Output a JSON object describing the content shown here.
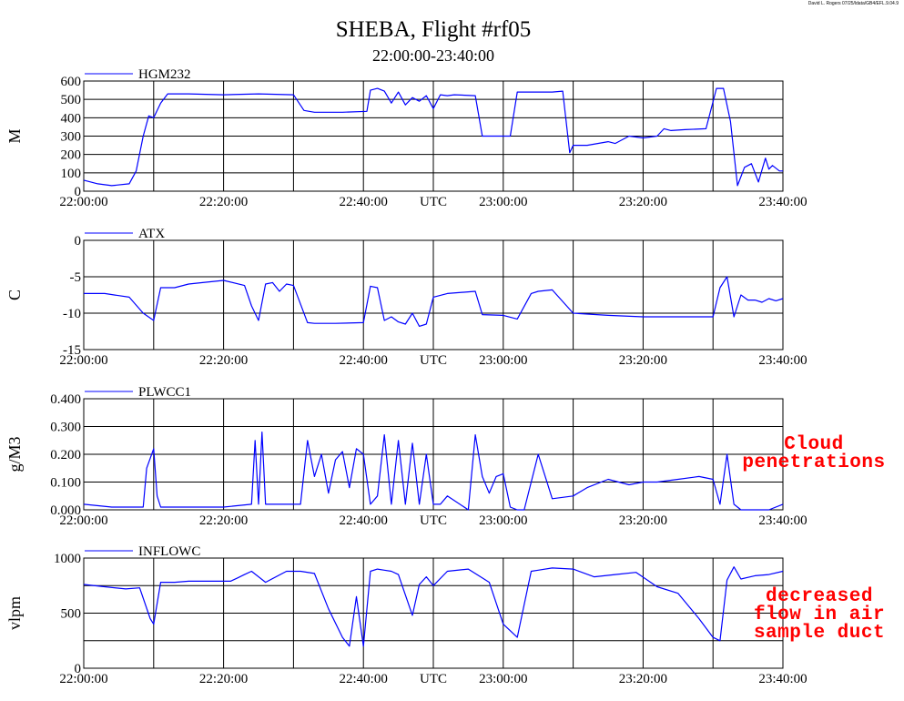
{
  "credit": "David L. Rogers 07/25/ldata/GB4/EFL.9.04.9",
  "chart_data": {
    "type": "line",
    "title": "SHEBA, Flight #rf05",
    "subtitle": "22:00:00-23:40:00",
    "xlabel": "UTC",
    "x_ticks": [
      "22:00:00",
      "22:20:00",
      "22:40:00",
      "23:00:00",
      "23:20:00",
      "23:40:00"
    ],
    "x_range_minutes": [
      0,
      100
    ],
    "line_color": "#0000ff",
    "grid": true,
    "panels": [
      {
        "name": "HGM232",
        "ylabel": "M",
        "ylim": [
          0,
          600
        ],
        "yticks": [
          0,
          100,
          200,
          300,
          400,
          500,
          600
        ],
        "ytick_labels": [
          "0",
          "100",
          "200",
          "300",
          "400",
          "500",
          "600"
        ],
        "x": [
          0,
          2,
          4,
          6.5,
          7.5,
          8.5,
          9.3,
          10,
          11,
          12,
          15,
          20,
          25,
          30,
          31.5,
          33,
          37,
          40.5,
          41,
          42,
          43,
          44,
          45,
          46,
          47,
          48,
          49,
          50,
          51,
          52,
          53,
          56,
          57,
          59,
          61,
          62,
          63,
          67,
          68.5,
          69.5,
          70,
          72,
          75,
          76,
          78,
          80,
          82,
          83,
          84,
          86,
          89,
          90.5,
          91.5,
          92.5,
          93.5,
          94.5,
          95.5,
          96.5,
          97.5,
          98,
          98.5,
          99.5,
          100
        ],
        "y": [
          60,
          40,
          30,
          40,
          110,
          300,
          410,
          400,
          480,
          530,
          530,
          525,
          530,
          525,
          440,
          430,
          430,
          435,
          550,
          560,
          545,
          480,
          540,
          470,
          510,
          490,
          520,
          450,
          525,
          520,
          525,
          520,
          300,
          300,
          300,
          540,
          540,
          540,
          545,
          210,
          250,
          250,
          270,
          260,
          300,
          290,
          300,
          340,
          330,
          335,
          340,
          560,
          560,
          380,
          30,
          130,
          150,
          50,
          180,
          120,
          140,
          110,
          110
        ]
      },
      {
        "name": "ATX",
        "ylabel": "C",
        "ylim": [
          -15,
          0
        ],
        "yticks": [
          -15,
          -10,
          -5,
          0
        ],
        "ytick_labels": [
          "-15",
          "-10",
          "-5",
          "0"
        ],
        "x": [
          0,
          3,
          6.5,
          8.5,
          10,
          11,
          13,
          15,
          17,
          20,
          23,
          24,
          25,
          26,
          27,
          28,
          29,
          30,
          32,
          33,
          36,
          40,
          41,
          42,
          43,
          44,
          45,
          46,
          47,
          48,
          49,
          50,
          52,
          56,
          57,
          60,
          62,
          64,
          65,
          67,
          70,
          75,
          80,
          85,
          90,
          91,
          92,
          93,
          94,
          95,
          96,
          97,
          98,
          99,
          100
        ],
        "y": [
          -7.3,
          -7.3,
          -7.8,
          -10,
          -11,
          -6.5,
          -6.5,
          -6,
          -5.8,
          -5.5,
          -6.2,
          -9,
          -11,
          -6,
          -5.8,
          -7,
          -6,
          -6.2,
          -11.3,
          -11.4,
          -11.4,
          -11.3,
          -6.3,
          -6.5,
          -11,
          -10.5,
          -11.2,
          -11.5,
          -10,
          -11.8,
          -11.5,
          -7.8,
          -7.3,
          -7,
          -10.2,
          -10.3,
          -10.8,
          -7.3,
          -7,
          -6.8,
          -10,
          -10.3,
          -10.5,
          -10.5,
          -10.5,
          -6.5,
          -5,
          -10.5,
          -7.5,
          -8.2,
          -8.2,
          -8.5,
          -8,
          -8.3,
          -8
        ]
      },
      {
        "name": "PLWCC1",
        "ylabel": "g/M3",
        "ylim": [
          0,
          0.4
        ],
        "yticks": [
          0,
          0.1,
          0.2,
          0.3,
          0.4
        ],
        "ytick_labels": [
          "0.000",
          "0.100",
          "0.200",
          "0.300",
          "0.400"
        ],
        "x": [
          0,
          4,
          8.5,
          9,
          10,
          10.5,
          11,
          12,
          15,
          20,
          24,
          24.5,
          25,
          25.5,
          26,
          30,
          31,
          32,
          33,
          34,
          35,
          36,
          37,
          38,
          39,
          40,
          41,
          42,
          43,
          44,
          45,
          46,
          47,
          48,
          49,
          50,
          51,
          52,
          55,
          56,
          57,
          58,
          59,
          60,
          61,
          62,
          63,
          65,
          67,
          70,
          72,
          75,
          78,
          80,
          82,
          85,
          88,
          90,
          91,
          92,
          93,
          94,
          96,
          98,
          100
        ],
        "y": [
          0.02,
          0.01,
          0.01,
          0.15,
          0.22,
          0.05,
          0.01,
          0.01,
          0.01,
          0.01,
          0.02,
          0.25,
          0.02,
          0.28,
          0.02,
          0.02,
          0.02,
          0.25,
          0.12,
          0.2,
          0.06,
          0.18,
          0.21,
          0.08,
          0.22,
          0.2,
          0.02,
          0.05,
          0.27,
          0.02,
          0.25,
          0.02,
          0.24,
          0.02,
          0.2,
          0.02,
          0.02,
          0.05,
          0.0,
          0.27,
          0.12,
          0.06,
          0.12,
          0.13,
          0.01,
          0.0,
          0.0,
          0.2,
          0.04,
          0.05,
          0.08,
          0.11,
          0.09,
          0.1,
          0.1,
          0.11,
          0.12,
          0.11,
          0.02,
          0.2,
          0.02,
          0.0,
          0.0,
          0.0,
          0.02
        ]
      },
      {
        "name": "INFLOWC",
        "ylabel": "vlpm",
        "ylim": [
          0,
          1000
        ],
        "yticks": [
          0,
          250,
          500,
          750,
          1000
        ],
        "ytick_labels": [
          "0",
          "500",
          "1000"
        ],
        "x": [
          0,
          3,
          6,
          8,
          9.5,
          10,
          11,
          13,
          15,
          18,
          21,
          22,
          23,
          24,
          26,
          29,
          31,
          33,
          35,
          37,
          38,
          39,
          40,
          41,
          42,
          43,
          44,
          45,
          47,
          48,
          49,
          50,
          52,
          55,
          58,
          60,
          62,
          64,
          65,
          67,
          70,
          73,
          76,
          79,
          82,
          85,
          88,
          90,
          91,
          92,
          93,
          94,
          96,
          98,
          100
        ],
        "y": [
          760,
          740,
          720,
          730,
          450,
          400,
          780,
          780,
          790,
          790,
          790,
          820,
          850,
          880,
          780,
          880,
          880,
          860,
          540,
          280,
          200,
          650,
          200,
          880,
          900,
          890,
          880,
          850,
          480,
          760,
          830,
          750,
          880,
          900,
          780,
          400,
          280,
          880,
          890,
          910,
          900,
          830,
          850,
          870,
          740,
          680,
          450,
          280,
          250,
          800,
          920,
          810,
          840,
          850,
          880
        ]
      }
    ],
    "annotations": [
      {
        "lines": [
          "Cloud",
          "penetrations"
        ],
        "color": "#ff0000"
      },
      {
        "lines": [
          "decreased",
          "flow in air",
          "sample duct"
        ],
        "color": "#ff0000"
      }
    ]
  }
}
